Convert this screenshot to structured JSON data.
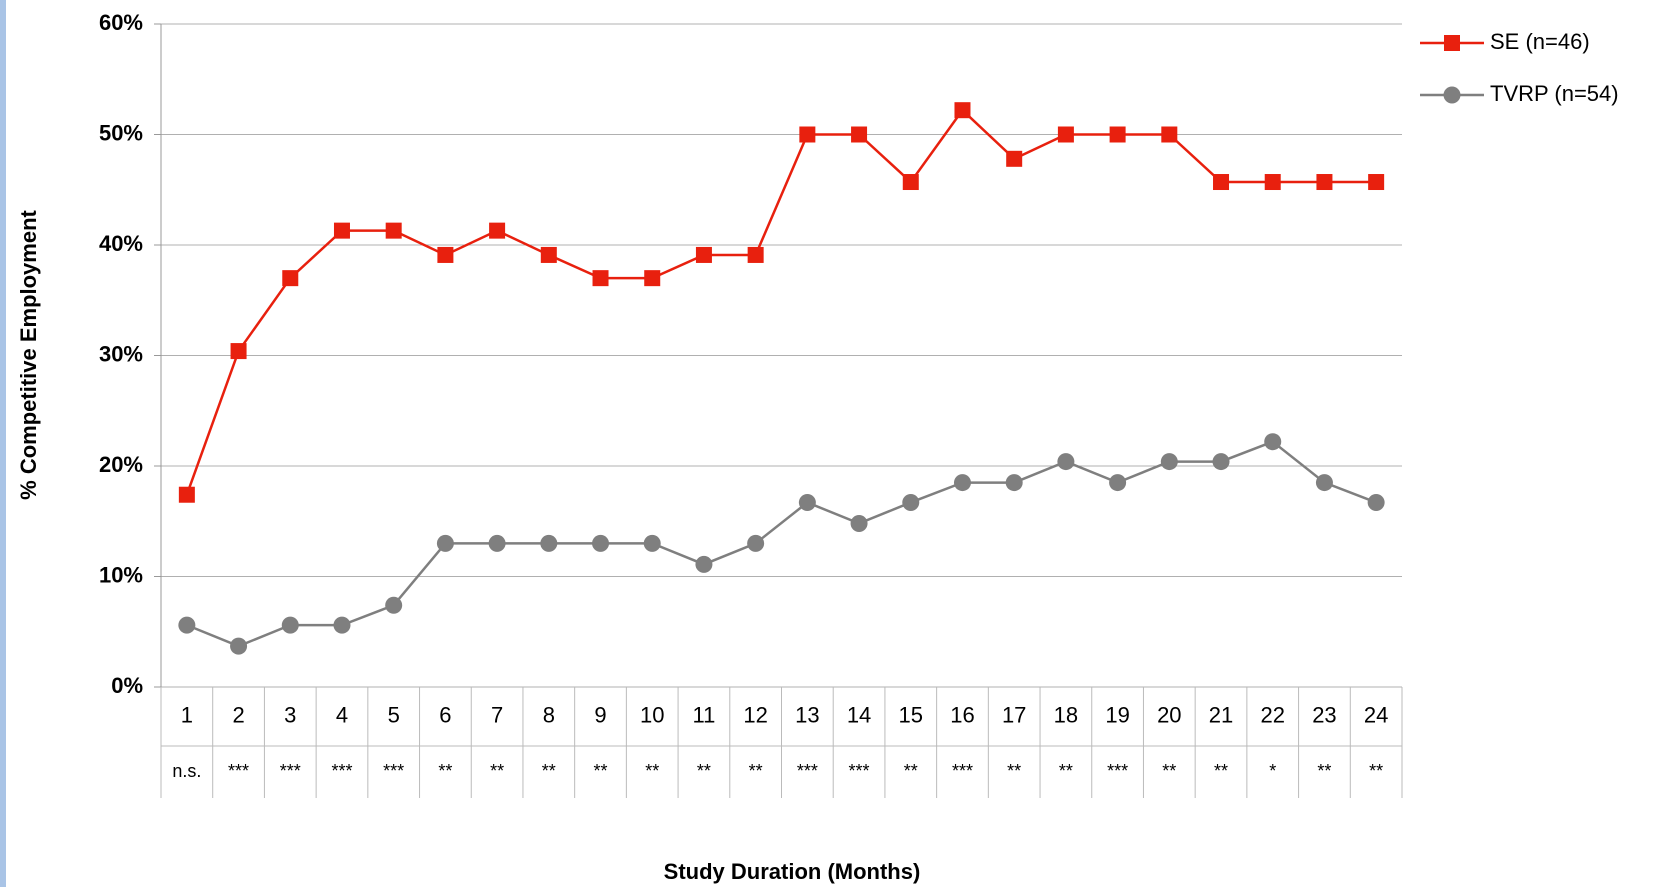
{
  "chart_data": {
    "type": "line",
    "x_label": "Study Duration (Months)",
    "y_label": "% Competitive Employment",
    "categories": [
      "1",
      "2",
      "3",
      "4",
      "5",
      "6",
      "7",
      "8",
      "9",
      "10",
      "11",
      "12",
      "13",
      "14",
      "15",
      "16",
      "17",
      "18",
      "19",
      "20",
      "21",
      "22",
      "23",
      "24"
    ],
    "significance": [
      "n.s.",
      "***",
      "***",
      "***",
      "***",
      "**",
      "**",
      "**",
      "**",
      "**",
      "**",
      "**",
      "***",
      "***",
      "**",
      "***",
      "**",
      "**",
      "***",
      "**",
      "**",
      "*",
      "**",
      "**"
    ],
    "series": [
      {
        "name": "SE (n=46)",
        "color": "#e8200e",
        "marker": "square",
        "values": [
          17.4,
          30.4,
          37.0,
          41.3,
          41.3,
          39.1,
          41.3,
          39.1,
          37.0,
          37.0,
          39.1,
          39.1,
          50.0,
          50.0,
          45.7,
          52.2,
          47.8,
          50.0,
          50.0,
          50.0,
          45.7,
          45.7,
          45.7,
          45.7
        ]
      },
      {
        "name": "TVRP (n=54)",
        "color": "#7f7f7f",
        "marker": "circle",
        "values": [
          5.6,
          3.7,
          5.6,
          5.6,
          7.4,
          13.0,
          13.0,
          13.0,
          13.0,
          13.0,
          11.1,
          13.0,
          16.7,
          14.8,
          16.7,
          18.5,
          18.5,
          20.4,
          18.5,
          20.4,
          20.4,
          22.2,
          18.5,
          16.7
        ]
      }
    ],
    "ylim": [
      0,
      60
    ],
    "yticks": [
      {
        "value": 0,
        "label": "0%"
      },
      {
        "value": 10,
        "label": "10%"
      },
      {
        "value": 20,
        "label": "20%"
      },
      {
        "value": 30,
        "label": "30%"
      },
      {
        "value": 40,
        "label": "40%"
      },
      {
        "value": 50,
        "label": "50%"
      },
      {
        "value": 60,
        "label": "60%"
      }
    ],
    "grid": true,
    "legend": "right"
  }
}
